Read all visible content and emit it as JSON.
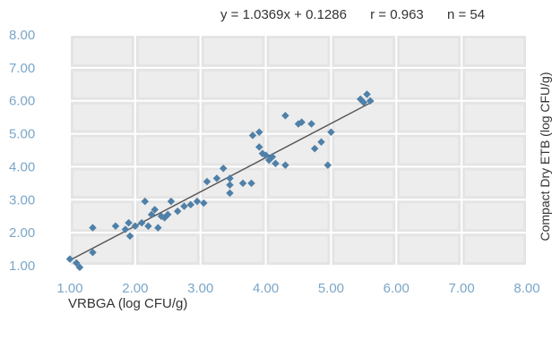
{
  "chart_data": {
    "type": "scatter",
    "title": "",
    "stats": {
      "equation": "y = 1.0369x + 0.1286",
      "r": "r = 0.963",
      "n": "n = 54"
    },
    "xlabel": "VRBGA (log CFU/g)",
    "ylabel": "Compact Dry ETB (log CFU/g)",
    "xlim": [
      1.0,
      8.0
    ],
    "ylim": [
      1.0,
      8.0
    ],
    "x_ticks": [
      "1.00",
      "2.00",
      "3.00",
      "4.00",
      "5.00",
      "6.00",
      "7.00",
      "8.00"
    ],
    "y_ticks": [
      "1.00",
      "2.00",
      "3.00",
      "4.00",
      "5.00",
      "6.00",
      "7.00",
      "8.00"
    ],
    "grid": true,
    "point_color": "#4f80a8",
    "line_color": "#555555",
    "grid_bg": "#e4e4e4",
    "tick_color": "#7aa6c8",
    "regression": {
      "slope": 1.0369,
      "intercept": 0.1286
    },
    "points": [
      {
        "x": 1.0,
        "y": 1.2
      },
      {
        "x": 1.1,
        "y": 1.08
      },
      {
        "x": 1.15,
        "y": 0.95
      },
      {
        "x": 1.35,
        "y": 1.4
      },
      {
        "x": 1.35,
        "y": 2.15
      },
      {
        "x": 1.7,
        "y": 2.2
      },
      {
        "x": 1.85,
        "y": 2.1
      },
      {
        "x": 1.9,
        "y": 2.3
      },
      {
        "x": 1.92,
        "y": 1.9
      },
      {
        "x": 2.0,
        "y": 2.2
      },
      {
        "x": 2.1,
        "y": 2.3
      },
      {
        "x": 2.15,
        "y": 2.95
      },
      {
        "x": 2.2,
        "y": 2.2
      },
      {
        "x": 2.25,
        "y": 2.55
      },
      {
        "x": 2.3,
        "y": 2.7
      },
      {
        "x": 2.35,
        "y": 2.15
      },
      {
        "x": 2.4,
        "y": 2.5
      },
      {
        "x": 2.45,
        "y": 2.45
      },
      {
        "x": 2.5,
        "y": 2.55
      },
      {
        "x": 2.55,
        "y": 2.95
      },
      {
        "x": 2.65,
        "y": 2.65
      },
      {
        "x": 2.75,
        "y": 2.8
      },
      {
        "x": 2.85,
        "y": 2.85
      },
      {
        "x": 2.95,
        "y": 2.95
      },
      {
        "x": 3.05,
        "y": 2.9
      },
      {
        "x": 3.1,
        "y": 3.55
      },
      {
        "x": 3.25,
        "y": 3.65
      },
      {
        "x": 3.35,
        "y": 3.95
      },
      {
        "x": 3.45,
        "y": 3.65
      },
      {
        "x": 3.45,
        "y": 3.45
      },
      {
        "x": 3.45,
        "y": 3.2
      },
      {
        "x": 3.65,
        "y": 3.5
      },
      {
        "x": 3.78,
        "y": 3.5
      },
      {
        "x": 3.8,
        "y": 4.95
      },
      {
        "x": 3.9,
        "y": 5.05
      },
      {
        "x": 3.9,
        "y": 4.6
      },
      {
        "x": 3.95,
        "y": 4.4
      },
      {
        "x": 4.0,
        "y": 4.35
      },
      {
        "x": 4.05,
        "y": 4.2
      },
      {
        "x": 4.1,
        "y": 4.3
      },
      {
        "x": 4.15,
        "y": 4.1
      },
      {
        "x": 4.3,
        "y": 5.55
      },
      {
        "x": 4.3,
        "y": 4.05
      },
      {
        "x": 4.5,
        "y": 5.3
      },
      {
        "x": 4.55,
        "y": 5.35
      },
      {
        "x": 4.7,
        "y": 5.3
      },
      {
        "x": 4.75,
        "y": 4.55
      },
      {
        "x": 4.85,
        "y": 4.75
      },
      {
        "x": 4.95,
        "y": 4.05
      },
      {
        "x": 5.0,
        "y": 5.05
      },
      {
        "x": 5.45,
        "y": 6.05
      },
      {
        "x": 5.5,
        "y": 5.95
      },
      {
        "x": 5.55,
        "y": 6.2
      },
      {
        "x": 5.6,
        "y": 6.0
      }
    ]
  }
}
